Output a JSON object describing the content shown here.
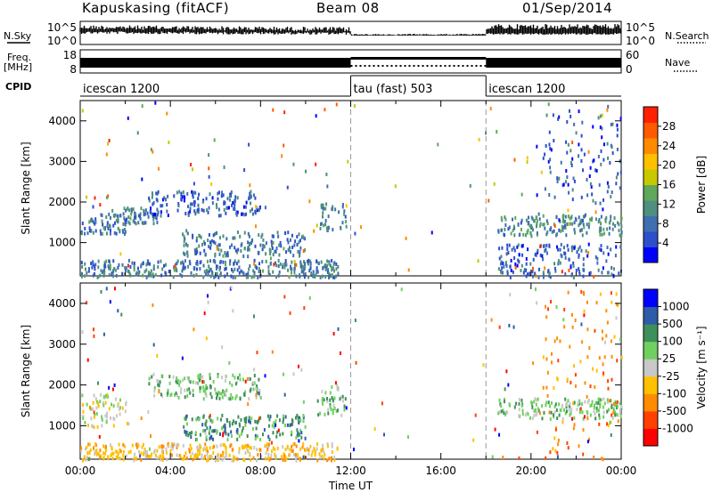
{
  "header": {
    "station": "Kapuskasing (fitACF)",
    "beam": "Beam 08",
    "date": "01/Sep/2014"
  },
  "status_labels": {
    "nsky": "N.Sky",
    "nsearch": "N.Search",
    "freq": "Freq.",
    "freq_unit": "[MHz]",
    "nave": "Nave",
    "cpid": "CPID",
    "noise_ticks": [
      "10^5",
      "10^0"
    ],
    "freq_ticks": [
      "18",
      "8"
    ],
    "nave_ticks": [
      "60",
      "0"
    ]
  },
  "cpid_segments": [
    {
      "label": "icescan 1200",
      "start_h": 0,
      "end_h": 12
    },
    {
      "label": "tau (fast) 503",
      "start_h": 12,
      "end_h": 18
    },
    {
      "label": "icescan 1200",
      "start_h": 18,
      "end_h": 24
    }
  ],
  "chart_data": [
    {
      "type": "heatmap",
      "name": "power",
      "ylabel": "Slant Range [km]",
      "xlabel": "",
      "xlim": [
        0,
        24
      ],
      "ylim": [
        180,
        4500
      ],
      "yticks": [
        1000,
        2000,
        3000,
        4000
      ],
      "colorbar": {
        "label": "Power [dB]",
        "min": 0,
        "max": 32,
        "ticks": [
          "4",
          "8",
          "12",
          "16",
          "20",
          "24",
          "28"
        ],
        "colors": [
          "#0000ff",
          "#2d4fcc",
          "#3f6fb0",
          "#4f8f7f",
          "#5fa85a",
          "#c8c800",
          "#ffc000",
          "#ff8a00",
          "#ff5a00",
          "#ff2000"
        ]
      },
      "echo_regions": [
        {
          "t0": 0.0,
          "t1": 2.2,
          "r0": 1250,
          "r1": 1750,
          "level": 8
        },
        {
          "t0": 1.5,
          "t1": 3.5,
          "r0": 1500,
          "r1": 1900,
          "level": 8
        },
        {
          "t0": 3.0,
          "t1": 8.0,
          "r0": 1700,
          "r1": 2300,
          "level": 6
        },
        {
          "t0": 4.5,
          "t1": 10.0,
          "r0": 700,
          "r1": 1300,
          "level": 8
        },
        {
          "t0": 0.0,
          "t1": 11.5,
          "r0": 180,
          "r1": 600,
          "level": 8
        },
        {
          "t0": 10.5,
          "t1": 11.8,
          "r0": 1300,
          "r1": 2000,
          "level": 10
        },
        {
          "t0": 18.5,
          "t1": 24.0,
          "r0": 1200,
          "r1": 1700,
          "level": 10
        },
        {
          "t0": 18.5,
          "t1": 24.0,
          "r0": 180,
          "r1": 1000,
          "level": 6
        },
        {
          "t0": 20.5,
          "t1": 24.0,
          "r0": 2000,
          "r1": 4400,
          "level": 6
        }
      ]
    },
    {
      "type": "heatmap",
      "name": "velocity",
      "ylabel": "Slant Range [km]",
      "xlabel": "Time UT",
      "xlim": [
        0,
        24
      ],
      "ylim": [
        180,
        4500
      ],
      "yticks": [
        1000,
        2000,
        3000,
        4000
      ],
      "xticks": [
        "00:00",
        "04:00",
        "08:00",
        "12:00",
        "16:00",
        "20:00",
        "00:00"
      ],
      "colorbar": {
        "label": "Velocity [m s⁻¹]",
        "ticks": [
          "1000",
          "500",
          "100",
          "25",
          "-25",
          "-100",
          "-500",
          "-1000"
        ],
        "colors": [
          "#0000ff",
          "#2e5ca8",
          "#3f8f5a",
          "#6fd060",
          "#c8c8c8",
          "#ffc000",
          "#ff8c00",
          "#ff4000",
          "#ff0000"
        ]
      },
      "echo_regions": [
        {
          "t0": 0.0,
          "t1": 2.2,
          "r0": 1000,
          "r1": 1800,
          "level": "-25"
        },
        {
          "t0": 3.0,
          "t1": 8.0,
          "r0": 1700,
          "r1": 2300,
          "level": "25"
        },
        {
          "t0": 4.5,
          "t1": 10.0,
          "r0": 700,
          "r1": 1300,
          "level": "100"
        },
        {
          "t0": 0.0,
          "t1": 11.5,
          "r0": 180,
          "r1": 600,
          "level": "-100"
        },
        {
          "t0": 10.5,
          "t1": 11.8,
          "r0": 1300,
          "r1": 2000,
          "level": "25"
        },
        {
          "t0": 18.5,
          "t1": 24.0,
          "r0": 1200,
          "r1": 1700,
          "level": "25"
        },
        {
          "t0": 20.5,
          "t1": 24.0,
          "r0": 200,
          "r1": 4400,
          "level": "-500"
        }
      ]
    }
  ]
}
